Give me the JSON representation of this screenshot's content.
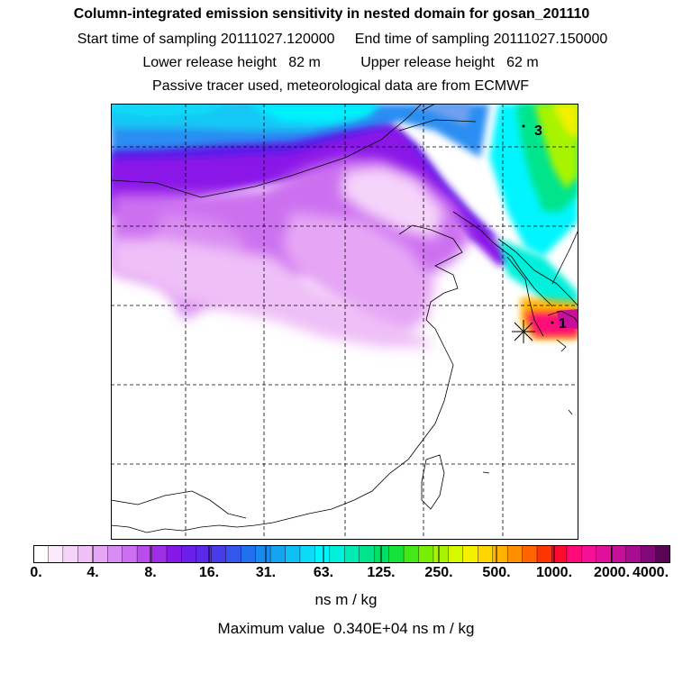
{
  "header": {
    "title": "Column-integrated emission sensitivity in nested domain for gosan_201110",
    "sampling": "Start time of sampling 20111027.120000     End time of sampling 20111027.150000",
    "release": "Lower release height   82 m          Upper release height   62 m",
    "tracer": "Passive tracer used, meteorological data are from ECMWF"
  },
  "map": {
    "labels": [
      {
        "name": "receptor-1",
        "text": "1"
      },
      {
        "name": "receptor-3",
        "text": "3"
      }
    ]
  },
  "colorbar": {
    "colors": [
      "#ffffff",
      "#fbeafc",
      "#f5d4fa",
      "#efbff7",
      "#e6a6f5",
      "#d98cf2",
      "#cc6ff0",
      "#b84ced",
      "#9f2ee6",
      "#8517e8",
      "#6c1fe8",
      "#5a2ae8",
      "#4a3bea",
      "#3456ec",
      "#2270ee",
      "#178af0",
      "#14a4f2",
      "#10bff4",
      "#0ddaf6",
      "#00f5ff",
      "#00f0dc",
      "#00eab4",
      "#00e48c",
      "#00de64",
      "#16e23c",
      "#44e814",
      "#76ef00",
      "#a8f400",
      "#d6f800",
      "#f4f000",
      "#ffd500",
      "#ffb300",
      "#ff8f00",
      "#ff6400",
      "#ff3400",
      "#ff0a2c",
      "#ff0a78",
      "#f50f96",
      "#e0109c",
      "#c80f9c",
      "#a80c90",
      "#820878",
      "#5a0456"
    ],
    "tick_labels": [
      "0.",
      "4.",
      "8.",
      "16.",
      "31.",
      "63.",
      "125.",
      "250.",
      "500.",
      "1000.",
      "2000.",
      "4000."
    ],
    "units": "ns m / kg"
  },
  "footer": {
    "max_value": "Maximum value  0.340E+04 ns m / kg"
  }
}
